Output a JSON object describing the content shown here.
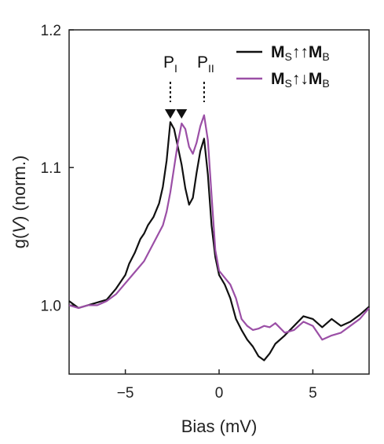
{
  "chart_data": {
    "type": "line",
    "xlabel_main": "Bias (mV)",
    "ylabel_prefix": "g(",
    "ylabel_var": "V",
    "ylabel_suffix": ") (norm.)",
    "xlim": [
      -8,
      8
    ],
    "ylim": [
      0.95,
      1.2
    ],
    "xticks": [
      -5,
      0,
      5
    ],
    "xtick_labels": [
      "−5",
      "0",
      "5"
    ],
    "yticks": [
      1.0,
      1.1,
      1.2
    ],
    "ytick_labels": [
      "1.0",
      "1.1",
      "1.2"
    ],
    "grid": false,
    "legend_position": "top-right",
    "annotations": {
      "p1": {
        "base": "P",
        "sub": "I",
        "x": -2.6
      },
      "p2": {
        "base": "P",
        "sub": "II",
        "x": -0.8
      },
      "markers_x": [
        -2.6,
        -2.0
      ]
    },
    "series": [
      {
        "name_parts": {
          "a": "M",
          "a_sub": "S",
          "arrows": "↑↑",
          "b": "M",
          "b_sub": "B"
        },
        "color": "#111111",
        "x": [
          -8.0,
          -7.5,
          -7.0,
          -6.5,
          -6.0,
          -5.5,
          -5.0,
          -4.8,
          -4.5,
          -4.2,
          -4.0,
          -3.8,
          -3.5,
          -3.2,
          -3.0,
          -2.8,
          -2.6,
          -2.4,
          -2.2,
          -2.0,
          -1.8,
          -1.6,
          -1.4,
          -1.2,
          -1.0,
          -0.8,
          -0.6,
          -0.4,
          -0.2,
          0.0,
          0.3,
          0.6,
          0.9,
          1.2,
          1.5,
          1.8,
          2.1,
          2.4,
          2.7,
          3.0,
          3.5,
          4.0,
          4.5,
          5.0,
          5.5,
          6.0,
          6.5,
          7.0,
          7.5,
          8.0
        ],
        "y": [
          1.003,
          0.998,
          1.0,
          1.002,
          1.004,
          1.012,
          1.022,
          1.03,
          1.038,
          1.048,
          1.052,
          1.058,
          1.064,
          1.074,
          1.086,
          1.105,
          1.133,
          1.128,
          1.115,
          1.102,
          1.085,
          1.073,
          1.078,
          1.096,
          1.112,
          1.121,
          1.095,
          1.058,
          1.035,
          1.022,
          1.015,
          1.005,
          0.99,
          0.982,
          0.975,
          0.97,
          0.963,
          0.96,
          0.965,
          0.972,
          0.978,
          0.985,
          0.992,
          0.99,
          0.984,
          0.99,
          0.985,
          0.988,
          0.993,
          0.999
        ]
      },
      {
        "name_parts": {
          "a": "M",
          "a_sub": "S",
          "arrows": "↑↓",
          "b": "M",
          "b_sub": "B"
        },
        "color": "#9b4fa6",
        "x": [
          -8.0,
          -7.5,
          -7.0,
          -6.5,
          -6.0,
          -5.5,
          -5.0,
          -4.5,
          -4.0,
          -3.5,
          -3.0,
          -2.8,
          -2.6,
          -2.4,
          -2.2,
          -2.0,
          -1.8,
          -1.6,
          -1.4,
          -1.2,
          -1.0,
          -0.8,
          -0.6,
          -0.4,
          -0.2,
          0.0,
          0.3,
          0.6,
          0.9,
          1.2,
          1.5,
          1.8,
          2.1,
          2.4,
          2.7,
          3.0,
          3.5,
          4.0,
          4.5,
          5.0,
          5.5,
          6.0,
          6.5,
          7.0,
          7.5,
          8.0
        ],
        "y": [
          1.0,
          0.998,
          1.0,
          1.0,
          1.003,
          1.008,
          1.016,
          1.024,
          1.032,
          1.045,
          1.058,
          1.068,
          1.082,
          1.1,
          1.118,
          1.132,
          1.128,
          1.115,
          1.11,
          1.118,
          1.13,
          1.138,
          1.12,
          1.08,
          1.04,
          1.025,
          1.02,
          1.015,
          1.005,
          0.99,
          0.985,
          0.982,
          0.983,
          0.985,
          0.984,
          0.987,
          0.98,
          0.982,
          0.988,
          0.985,
          0.975,
          0.978,
          0.98,
          0.985,
          0.99,
          0.998
        ]
      }
    ]
  }
}
